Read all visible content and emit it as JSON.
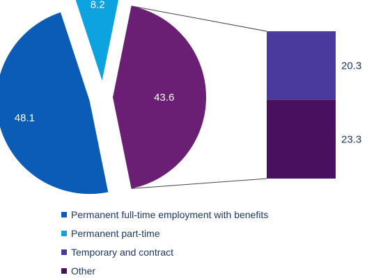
{
  "chart_data": {
    "type": "pie",
    "slices": [
      {
        "key": "full_time",
        "value": 48.1,
        "label": "48.1",
        "color": "#0b5cb7"
      },
      {
        "key": "part_time",
        "value": 8.2,
        "label": "8.2",
        "color": "#0da2e0"
      },
      {
        "key": "other_group",
        "value": 43.6,
        "label": "43.6",
        "color": "#6a1e74"
      }
    ],
    "breakdown": {
      "of": "other_group",
      "type": "stacked-bar",
      "segments": [
        {
          "key": "temporary",
          "value": 20.3,
          "label": "20.3",
          "color": "#4b3a9e"
        },
        {
          "key": "other",
          "value": 23.3,
          "label": "23.3",
          "color": "#48105e"
        }
      ]
    },
    "legend": [
      {
        "label": "Permanent full-time employment with benefits",
        "color": "#0b5cb7"
      },
      {
        "label": "Permanent part-time",
        "color": "#0da2e0"
      },
      {
        "label": "Temporary and contract",
        "color": "#4b3a9e"
      },
      {
        "label": "Other",
        "color": "#48105e"
      }
    ],
    "legend_position": "bottom"
  }
}
